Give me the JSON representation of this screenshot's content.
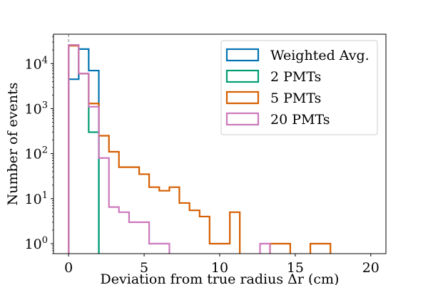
{
  "chart_data": {
    "type": "histogram",
    "title": "",
    "xlabel": "Deviation from true radius Δr (cm)",
    "ylabel": "Number of events",
    "xlim": [
      -1,
      21
    ],
    "ylim": [
      0.6,
      45000
    ],
    "yscale": "log",
    "x_ticks": [
      0,
      5,
      10,
      15,
      20
    ],
    "y_ticks": [
      1,
      10,
      100,
      1000,
      10000
    ],
    "y_tick_exponents": [
      "0",
      "1",
      "2",
      "3",
      "4"
    ],
    "reference_line_x": 0,
    "legend_position": "top-right",
    "series": [
      {
        "name": "Weighted Avg.",
        "color": "#0173b2",
        "bins": [
          {
            "x0": 0.0,
            "x1": 0.67,
            "count": 4500
          },
          {
            "x0": 0.67,
            "x1": 1.33,
            "count": 21000
          },
          {
            "x0": 1.33,
            "x1": 2.0,
            "count": 7000
          }
        ]
      },
      {
        "name": "2 PMTs",
        "color": "#029e73",
        "bins": [
          {
            "x0": 0.0,
            "x1": 0.67,
            "count": 26000
          },
          {
            "x0": 0.67,
            "x1": 1.33,
            "count": 6000
          },
          {
            "x0": 1.33,
            "x1": 2.0,
            "count": 300
          }
        ]
      },
      {
        "name": "5 PMTs",
        "color": "#d55e00",
        "bins": [
          {
            "x0": 0.0,
            "x1": 0.67,
            "count": 25000
          },
          {
            "x0": 0.67,
            "x1": 1.33,
            "count": 6000
          },
          {
            "x0": 1.33,
            "x1": 2.0,
            "count": 1300
          },
          {
            "x0": 2.0,
            "x1": 2.67,
            "count": 250
          },
          {
            "x0": 2.67,
            "x1": 3.33,
            "count": 110
          },
          {
            "x0": 3.33,
            "x1": 4.0,
            "count": 50
          },
          {
            "x0": 4.0,
            "x1": 4.67,
            "count": 50
          },
          {
            "x0": 4.67,
            "x1": 5.33,
            "count": 35
          },
          {
            "x0": 5.33,
            "x1": 6.0,
            "count": 18
          },
          {
            "x0": 6.0,
            "x1": 6.67,
            "count": 15
          },
          {
            "x0": 6.67,
            "x1": 7.33,
            "count": 18
          },
          {
            "x0": 7.33,
            "x1": 8.0,
            "count": 8
          },
          {
            "x0": 8.0,
            "x1": 8.67,
            "count": 5.5
          },
          {
            "x0": 8.67,
            "x1": 9.33,
            "count": 4
          },
          {
            "x0": 9.33,
            "x1": 10.0,
            "count": 1
          },
          {
            "x0": 10.0,
            "x1": 10.67,
            "count": 1
          },
          {
            "x0": 10.67,
            "x1": 11.33,
            "count": 5
          },
          {
            "x0": 13.33,
            "x1": 14.0,
            "count": 1
          },
          {
            "x0": 14.0,
            "x1": 14.67,
            "count": 1
          },
          {
            "x0": 16.0,
            "x1": 16.67,
            "count": 1
          },
          {
            "x0": 16.67,
            "x1": 17.33,
            "count": 1
          }
        ]
      },
      {
        "name": "20 PMTs",
        "color": "#cc78bc",
        "bins": [
          {
            "x0": 0.0,
            "x1": 0.67,
            "count": 26000
          },
          {
            "x0": 0.67,
            "x1": 1.33,
            "count": 6000
          },
          {
            "x0": 1.33,
            "x1": 2.0,
            "count": 1100
          },
          {
            "x0": 2.0,
            "x1": 2.67,
            "count": 80
          },
          {
            "x0": 2.67,
            "x1": 3.33,
            "count": 6.5
          },
          {
            "x0": 3.33,
            "x1": 4.0,
            "count": 5
          },
          {
            "x0": 4.0,
            "x1": 4.67,
            "count": 3
          },
          {
            "x0": 4.67,
            "x1": 5.33,
            "count": 3
          },
          {
            "x0": 5.33,
            "x1": 6.0,
            "count": 1
          },
          {
            "x0": 6.0,
            "x1": 6.67,
            "count": 1
          },
          {
            "x0": 12.67,
            "x1": 13.33,
            "count": 1
          }
        ]
      }
    ]
  }
}
